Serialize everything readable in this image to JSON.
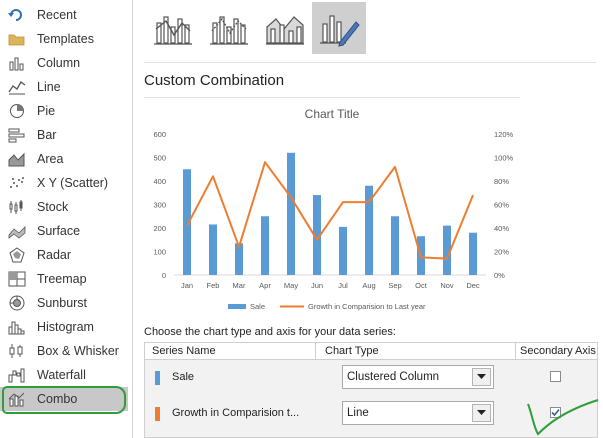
{
  "sidebar": {
    "items": [
      {
        "label": "Recent",
        "icon": "recent-icon"
      },
      {
        "label": "Templates",
        "icon": "folder-icon"
      },
      {
        "label": "Column",
        "icon": "column-chart-icon"
      },
      {
        "label": "Line",
        "icon": "line-chart-icon"
      },
      {
        "label": "Pie",
        "icon": "pie-chart-icon"
      },
      {
        "label": "Bar",
        "icon": "bar-chart-icon"
      },
      {
        "label": "Area",
        "icon": "area-chart-icon"
      },
      {
        "label": "X Y (Scatter)",
        "icon": "scatter-chart-icon"
      },
      {
        "label": "Stock",
        "icon": "stock-chart-icon"
      },
      {
        "label": "Surface",
        "icon": "surface-chart-icon"
      },
      {
        "label": "Radar",
        "icon": "radar-chart-icon"
      },
      {
        "label": "Treemap",
        "icon": "treemap-chart-icon"
      },
      {
        "label": "Sunburst",
        "icon": "sunburst-chart-icon"
      },
      {
        "label": "Histogram",
        "icon": "histogram-chart-icon"
      },
      {
        "label": "Box & Whisker",
        "icon": "box-whisker-chart-icon"
      },
      {
        "label": "Waterfall",
        "icon": "waterfall-chart-icon"
      },
      {
        "label": "Combo",
        "icon": "combo-chart-icon"
      }
    ],
    "selected": "Combo"
  },
  "section_title": "Custom Combination",
  "prompt": "Choose the chart type and axis for your data series:",
  "table": {
    "headers": {
      "series": "Series Name",
      "chart_type": "Chart Type",
      "secondary": "Secondary Axis"
    },
    "rows": [
      {
        "name": "Sale",
        "chart_type": "Clustered Column",
        "secondary_axis": false,
        "color": "#5b9bd5"
      },
      {
        "name": "Growth in Comparision t...",
        "chart_type": "Line",
        "secondary_axis": true,
        "color": "#ed7d31"
      }
    ]
  },
  "colors": {
    "sale": "#5b9bd5",
    "growth": "#ed7d31",
    "selected_bg": "#c8c8c8",
    "annotation": "#2e9e3a"
  },
  "chart_data": {
    "type": "bar",
    "title": "Chart Title",
    "categories": [
      "Jan",
      "Feb",
      "Mar",
      "Apr",
      "May",
      "Jun",
      "Jul",
      "Aug",
      "Sep",
      "Oct",
      "Nov",
      "Dec"
    ],
    "series": [
      {
        "name": "Sale",
        "type": "bar",
        "axis": "primary",
        "values": [
          450,
          215,
          135,
          250,
          520,
          340,
          205,
          380,
          250,
          165,
          210,
          180
        ]
      },
      {
        "name": "Growth in Comparision to Last year",
        "type": "line",
        "axis": "secondary",
        "values": [
          42,
          84,
          24,
          96,
          66,
          30,
          62,
          62,
          92,
          15,
          14,
          68
        ]
      }
    ],
    "y_axis": {
      "min": 0,
      "max": 600,
      "ticks": [
        "0",
        "100",
        "200",
        "300",
        "400",
        "500",
        "600"
      ]
    },
    "y2_axis": {
      "min": 0,
      "max": 120,
      "ticks": [
        "0%",
        "20%",
        "40%",
        "60%",
        "80%",
        "100%",
        "120%"
      ]
    },
    "legend": "bottom",
    "grid": false
  }
}
